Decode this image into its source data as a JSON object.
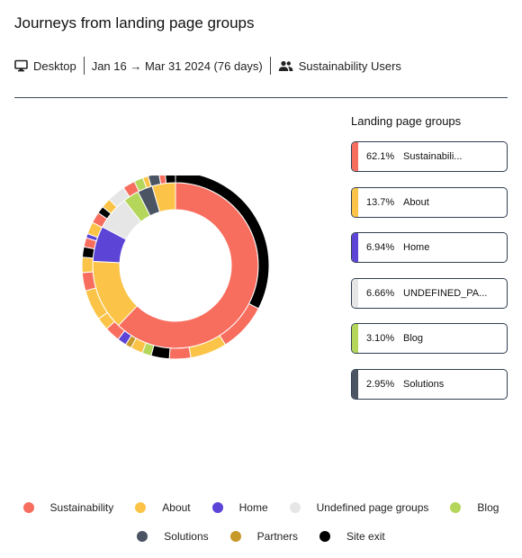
{
  "title": "Journeys from landing page groups",
  "filters": {
    "device": "Desktop",
    "date_range": "Jan 16 → Mar 31 2024 (76 days)",
    "segment": "Sustainability Users"
  },
  "icons": {
    "device": "monitor-icon",
    "segment": "users-icon"
  },
  "colors": {
    "sustainability": "#f76d5e",
    "about": "#fbc448",
    "home": "#5b44d6",
    "undefined": "#e6e6e6",
    "blog": "#b4d65a",
    "solutions": "#4a5462",
    "partners": "#c7982a",
    "site_exit": "#000000"
  },
  "landing_groups_title": "Landing page groups",
  "landing_groups": [
    {
      "pct": "62.1%",
      "name": "Sustainabili...",
      "color": "#f76d5e"
    },
    {
      "pct": "13.7%",
      "name": "About",
      "color": "#fbc448"
    },
    {
      "pct": "6.94%",
      "name": "Home",
      "color": "#5b44d6"
    },
    {
      "pct": "6.66%",
      "name": "UNDEFINED_PA...",
      "color": "#e6e6e6"
    },
    {
      "pct": "3.10%",
      "name": "Blog",
      "color": "#b4d65a"
    },
    {
      "pct": "2.95%",
      "name": "Solutions",
      "color": "#4a5462"
    }
  ],
  "legend": [
    {
      "label": "Sustainability",
      "color": "#f76d5e"
    },
    {
      "label": "About",
      "color": "#fbc448"
    },
    {
      "label": "Home",
      "color": "#5b44d6"
    },
    {
      "label": "Undefined page groups",
      "color": "#e6e6e6"
    },
    {
      "label": "Blog",
      "color": "#b4d65a"
    },
    {
      "label": "Solutions",
      "color": "#4a5462"
    },
    {
      "label": "Partners",
      "color": "#c7982a"
    },
    {
      "label": "Site exit",
      "color": "#000000"
    }
  ],
  "chart_data": {
    "type": "sunburst",
    "start_angle_deg": 0,
    "levels": [
      {
        "ring": 1,
        "segments": [
          {
            "group": "Sustainability",
            "pct": 62.1,
            "color": "#f76d5e"
          },
          {
            "group": "About",
            "pct": 13.7,
            "color": "#fbc448"
          },
          {
            "group": "Home",
            "pct": 6.94,
            "color": "#5b44d6"
          },
          {
            "group": "Undefined page groups",
            "pct": 6.66,
            "color": "#e6e6e6"
          },
          {
            "group": "Blog",
            "pct": 3.1,
            "color": "#b4d65a"
          },
          {
            "group": "Solutions",
            "pct": 2.95,
            "color": "#4a5462"
          },
          {
            "group": "Other",
            "pct": 4.55,
            "color": "#fbc448"
          }
        ]
      },
      {
        "ring": 2,
        "segments": [
          {
            "group": "Site exit",
            "pct": 31.0,
            "color": "#000000"
          },
          {
            "group": "Sustainability",
            "pct": 8.0,
            "color": "#f76d5e"
          },
          {
            "group": "About",
            "pct": 6.0,
            "color": "#fbc448"
          },
          {
            "group": "Sustainability",
            "pct": 3.5,
            "color": "#f76d5e"
          },
          {
            "group": "Site exit",
            "pct": 3.0,
            "color": "#000000"
          },
          {
            "group": "Blog",
            "pct": 1.5,
            "color": "#b4d65a"
          },
          {
            "group": "About",
            "pct": 2.0,
            "color": "#fbc448"
          },
          {
            "group": "Partners",
            "pct": 1.0,
            "color": "#c7982a"
          },
          {
            "group": "Home",
            "pct": 1.5,
            "color": "#5b44d6"
          },
          {
            "group": "Sustainability",
            "pct": 2.5,
            "color": "#f76d5e"
          },
          {
            "group": "About",
            "pct": 2.1,
            "color": "#fbc448"
          },
          {
            "group": "About",
            "pct": 5.0,
            "color": "#fbc448"
          },
          {
            "group": "Sustainability",
            "pct": 3.0,
            "color": "#f76d5e"
          },
          {
            "group": "About",
            "pct": 2.5,
            "color": "#fbc448"
          },
          {
            "group": "Site exit",
            "pct": 1.7,
            "color": "#000000"
          },
          {
            "group": "Sustainability",
            "pct": 1.5,
            "color": "#f76d5e"
          },
          {
            "group": "Home",
            "pct": 0.7,
            "color": "#5b44d6"
          },
          {
            "group": "About",
            "pct": 2.0,
            "color": "#fbc448"
          },
          {
            "group": "Sustainability",
            "pct": 1.8,
            "color": "#f76d5e"
          },
          {
            "group": "Site exit",
            "pct": 1.2,
            "color": "#000000"
          },
          {
            "group": "About",
            "pct": 1.6,
            "color": "#fbc448"
          },
          {
            "group": "Undefined page groups",
            "pct": 3.0,
            "color": "#e6e6e6"
          },
          {
            "group": "Sustainability",
            "pct": 2.0,
            "color": "#f76d5e"
          },
          {
            "group": "Blog",
            "pct": 1.5,
            "color": "#b4d65a"
          },
          {
            "group": "About",
            "pct": 0.9,
            "color": "#fbc448"
          },
          {
            "group": "Solutions",
            "pct": 1.8,
            "color": "#4a5462"
          },
          {
            "group": "Sustainability",
            "pct": 1.0,
            "color": "#f76d5e"
          },
          {
            "group": "Site exit",
            "pct": 1.7,
            "color": "#000000"
          }
        ]
      }
    ]
  }
}
